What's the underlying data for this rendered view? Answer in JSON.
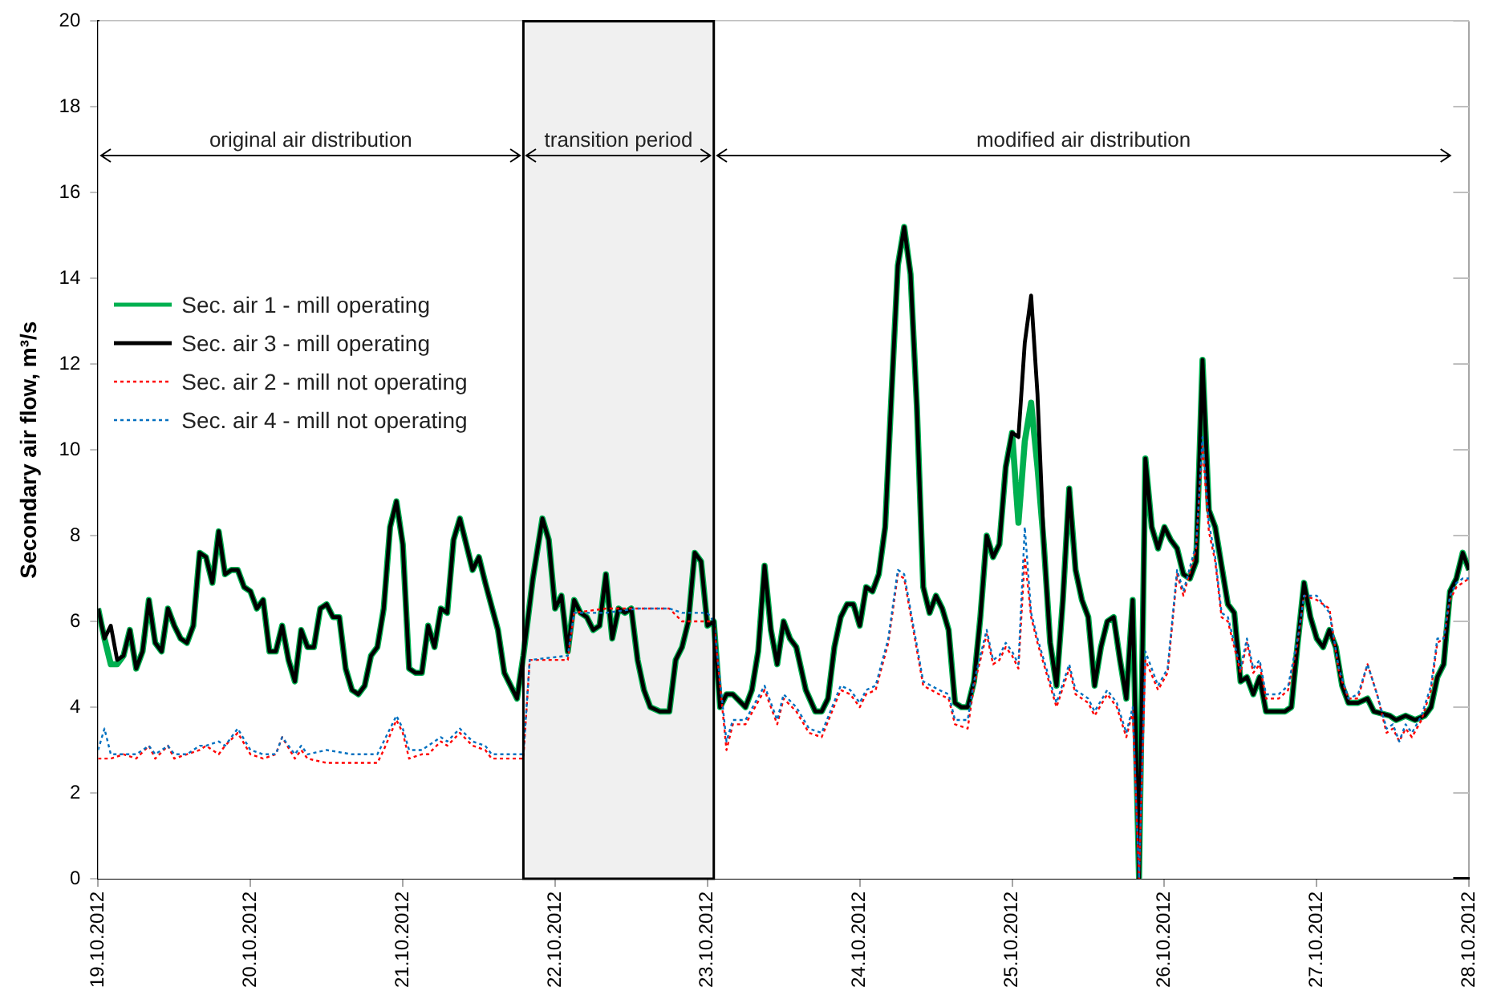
{
  "chart_data": {
    "type": "line",
    "ylabel": "Secondary air flow, m³/s",
    "ylim": [
      0,
      20
    ],
    "yticks": [
      0,
      2,
      4,
      6,
      8,
      10,
      12,
      14,
      16,
      18,
      20
    ],
    "xlim": [
      "2012-10-19",
      "2012-10-28"
    ],
    "xticks": [
      {
        "value": "2012-10-19",
        "label": "19.10.2012"
      },
      {
        "value": "2012-10-20",
        "label": "20.10.2012"
      },
      {
        "value": "2012-10-21",
        "label": "21.10.2012"
      },
      {
        "value": "2012-10-22",
        "label": "22.10.2012"
      },
      {
        "value": "2012-10-23",
        "label": "23.10.2012"
      },
      {
        "value": "2012-10-24",
        "label": "24.10.2012"
      },
      {
        "value": "2012-10-25",
        "label": "25.10.2012"
      },
      {
        "value": "2012-10-26",
        "label": "26.10.2012"
      },
      {
        "value": "2012-10-27",
        "label": "27.10.2012"
      },
      {
        "value": "2012-10-28",
        "label": "28.10.2012"
      }
    ],
    "grid": true,
    "legend": "left",
    "marker": "none",
    "bands": [
      {
        "axis": "x",
        "from": "2012-10-19",
        "to": "2012-10-21T19:00",
        "label": "original air distribution",
        "color": "#ffffff"
      },
      {
        "axis": "x",
        "from": "2012-10-21T19:00",
        "to": "2012-10-23T01:00",
        "label": "transition period",
        "color": "#f0f0f0"
      },
      {
        "axis": "x",
        "from": "2012-10-23T01:00",
        "to": "2012-10-27T21:30",
        "label": "modified air distribution",
        "color": "#ffffff"
      }
    ],
    "x": [
      "2012-10-19T00:00",
      "2012-10-19T01:00",
      "2012-10-19T02:00",
      "2012-10-19T03:00",
      "2012-10-19T04:00",
      "2012-10-19T05:00",
      "2012-10-19T06:00",
      "2012-10-19T07:00",
      "2012-10-19T08:00",
      "2012-10-19T09:00",
      "2012-10-19T10:00",
      "2012-10-19T11:00",
      "2012-10-19T12:00",
      "2012-10-19T13:00",
      "2012-10-19T14:00",
      "2012-10-19T15:00",
      "2012-10-19T16:00",
      "2012-10-19T17:00",
      "2012-10-19T18:00",
      "2012-10-19T19:00",
      "2012-10-19T20:00",
      "2012-10-19T21:00",
      "2012-10-19T22:00",
      "2012-10-19T23:00",
      "2012-10-20T00:00",
      "2012-10-20T01:00",
      "2012-10-20T02:00",
      "2012-10-20T03:00",
      "2012-10-20T04:00",
      "2012-10-20T05:00",
      "2012-10-20T06:00",
      "2012-10-20T07:00",
      "2012-10-20T08:00",
      "2012-10-20T09:00",
      "2012-10-20T10:00",
      "2012-10-20T11:00",
      "2012-10-20T12:00",
      "2012-10-20T13:00",
      "2012-10-20T14:00",
      "2012-10-20T15:00",
      "2012-10-20T16:00",
      "2012-10-20T17:00",
      "2012-10-20T18:00",
      "2012-10-20T19:00",
      "2012-10-20T20:00",
      "2012-10-20T21:00",
      "2012-10-20T22:00",
      "2012-10-20T23:00",
      "2012-10-21T00:00",
      "2012-10-21T01:00",
      "2012-10-21T02:00",
      "2012-10-21T03:00",
      "2012-10-21T04:00",
      "2012-10-21T05:00",
      "2012-10-21T06:00",
      "2012-10-21T07:00",
      "2012-10-21T08:00",
      "2012-10-21T09:00",
      "2012-10-21T10:00",
      "2012-10-21T11:00",
      "2012-10-21T12:00",
      "2012-10-21T13:00",
      "2012-10-21T15:00",
      "2012-10-21T16:00",
      "2012-10-21T17:00",
      "2012-10-21T18:00",
      "2012-10-21T19:00",
      "2012-10-21T20:30",
      "2012-10-21T22:00",
      "2012-10-21T23:00",
      "2012-10-22T00:00",
      "2012-10-22T01:00",
      "2012-10-22T02:00",
      "2012-10-22T03:00",
      "2012-10-22T04:00",
      "2012-10-22T05:00",
      "2012-10-22T06:00",
      "2012-10-22T07:00",
      "2012-10-22T08:00",
      "2012-10-22T09:00",
      "2012-10-22T10:00",
      "2012-10-22T11:00",
      "2012-10-22T12:00",
      "2012-10-22T13:00",
      "2012-10-22T14:00",
      "2012-10-22T15:00",
      "2012-10-22T16:30",
      "2012-10-22T18:00",
      "2012-10-22T19:00",
      "2012-10-22T20:00",
      "2012-10-22T21:00",
      "2012-10-22T22:00",
      "2012-10-22T23:00",
      "2012-10-23T00:00",
      "2012-10-23T01:00",
      "2012-10-23T02:00",
      "2012-10-23T03:00",
      "2012-10-23T04:00",
      "2012-10-23T06:00",
      "2012-10-23T07:00",
      "2012-10-23T08:00",
      "2012-10-23T09:00",
      "2012-10-23T10:00",
      "2012-10-23T11:00",
      "2012-10-23T12:00",
      "2012-10-23T13:00",
      "2012-10-23T14:00",
      "2012-10-23T15:30",
      "2012-10-23T17:00",
      "2012-10-23T18:00",
      "2012-10-23T19:00",
      "2012-10-23T20:00",
      "2012-10-23T21:00",
      "2012-10-23T22:00",
      "2012-10-23T23:00",
      "2012-10-24T00:00",
      "2012-10-24T01:00",
      "2012-10-24T02:00",
      "2012-10-24T03:00",
      "2012-10-24T04:00",
      "2012-10-24T05:00",
      "2012-10-24T06:00",
      "2012-10-24T07:00",
      "2012-10-24T08:00",
      "2012-10-24T09:00",
      "2012-10-24T10:00",
      "2012-10-24T11:00",
      "2012-10-24T12:00",
      "2012-10-24T13:00",
      "2012-10-24T14:00",
      "2012-10-24T15:00",
      "2012-10-24T16:00",
      "2012-10-24T17:00",
      "2012-10-24T18:00",
      "2012-10-24T19:00",
      "2012-10-24T20:00",
      "2012-10-24T21:00",
      "2012-10-24T22:00",
      "2012-10-24T23:00",
      "2012-10-25T00:00",
      "2012-10-25T01:00",
      "2012-10-25T02:00",
      "2012-10-25T03:00",
      "2012-10-25T04:00",
      "2012-10-25T05:00",
      "2012-10-25T06:00",
      "2012-10-25T07:00",
      "2012-10-25T08:00",
      "2012-10-25T09:00",
      "2012-10-25T10:00",
      "2012-10-25T11:00",
      "2012-10-25T12:00",
      "2012-10-25T13:00",
      "2012-10-25T14:00",
      "2012-10-25T15:00",
      "2012-10-25T16:00",
      "2012-10-25T17:00",
      "2012-10-25T18:00",
      "2012-10-25T19:00",
      "2012-10-25T20:00",
      "2012-10-25T21:00",
      "2012-10-25T22:00",
      "2012-10-25T23:00",
      "2012-10-26T00:00",
      "2012-10-26T01:00",
      "2012-10-26T02:00",
      "2012-10-26T03:00",
      "2012-10-26T04:00",
      "2012-10-26T05:00",
      "2012-10-26T06:00",
      "2012-10-26T07:00",
      "2012-10-26T08:00",
      "2012-10-26T09:00",
      "2012-10-26T10:00",
      "2012-10-26T11:00",
      "2012-10-26T12:00",
      "2012-10-26T13:00",
      "2012-10-26T14:00",
      "2012-10-26T15:00",
      "2012-10-26T16:00",
      "2012-10-26T17:00",
      "2012-10-26T18:00",
      "2012-10-26T19:00",
      "2012-10-26T20:00",
      "2012-10-26T21:00",
      "2012-10-26T22:00",
      "2012-10-26T23:00",
      "2012-10-27T00:00",
      "2012-10-27T01:00",
      "2012-10-27T02:00",
      "2012-10-27T03:00",
      "2012-10-27T04:00",
      "2012-10-27T05:00",
      "2012-10-27T06:30",
      "2012-10-27T08:00",
      "2012-10-27T09:00",
      "2012-10-27T11:30",
      "2012-10-27T12:30",
      "2012-10-27T14:00",
      "2012-10-27T15:30",
      "2012-10-27T17:00",
      "2012-10-27T18:00",
      "2012-10-27T19:00",
      "2012-10-27T20:00",
      "2012-10-27T21:00",
      "2012-10-27T22:00",
      "2012-10-27T23:00",
      "2012-10-28T00:00"
    ],
    "series": [
      {
        "name": "Sec. air 1 - mill operating",
        "color": "#00b050",
        "line_style": "solid",
        "values": [
          6.3,
          5.6,
          5.0,
          5.0,
          5.2,
          5.8,
          4.9,
          5.3,
          6.5,
          5.5,
          5.3,
          6.3,
          5.9,
          5.6,
          5.5,
          5.9,
          7.6,
          7.5,
          6.9,
          8.1,
          7.1,
          7.2,
          7.2,
          6.8,
          6.7,
          6.3,
          6.5,
          5.3,
          5.3,
          5.9,
          5.1,
          4.6,
          5.8,
          5.4,
          5.4,
          6.3,
          6.4,
          6.1,
          6.1,
          4.9,
          4.4,
          4.3,
          4.5,
          5.2,
          5.4,
          6.3,
          8.2,
          8.8,
          7.8,
          4.9,
          4.8,
          4.8,
          5.9,
          5.4,
          6.3,
          6.2,
          7.9,
          8.4,
          7.8,
          7.2,
          7.5,
          6.9,
          5.8,
          4.8,
          4.5,
          4.2,
          5.2,
          7.0,
          8.4,
          7.9,
          6.3,
          6.6,
          5.3,
          6.5,
          6.2,
          6.1,
          5.8,
          5.9,
          7.1,
          5.6,
          6.3,
          6.2,
          6.3,
          5.1,
          4.4,
          4.0,
          3.9,
          3.9,
          5.1,
          5.4,
          6.0,
          7.6,
          7.4,
          5.9,
          6.0,
          4.0,
          4.3,
          4.3,
          4.0,
          4.4,
          5.3,
          7.3,
          5.8,
          5.0,
          6.0,
          5.6,
          5.4,
          4.4,
          3.9,
          3.9,
          4.2,
          5.4,
          6.1,
          6.4,
          6.4,
          5.9,
          6.8,
          6.7,
          7.1,
          8.2,
          11.3,
          14.3,
          15.2,
          14.1,
          11.0,
          6.8,
          6.2,
          6.6,
          6.3,
          5.8,
          4.1,
          4.0,
          4.0,
          4.6,
          6.1,
          8.0,
          7.5,
          7.8,
          9.6,
          10.4,
          8.3,
          10.2,
          11.1,
          9.6,
          7.8,
          5.5,
          4.5,
          6.5,
          9.1,
          7.2,
          6.5,
          6.1,
          4.5,
          5.4,
          6.0,
          6.1,
          5.1,
          4.2,
          6.5,
          0,
          9.8,
          8.2,
          7.7,
          8.2,
          7.9,
          7.7,
          7.1,
          7.0,
          7.4,
          12.1,
          8.6,
          8.2,
          7.3,
          6.4,
          6.2,
          4.6,
          4.7,
          4.3,
          4.7,
          3.9,
          3.9,
          3.9,
          3.9,
          4.0,
          5.5,
          6.9,
          6.1,
          5.6,
          5.4,
          5.8,
          5.4,
          4.5,
          4.1,
          4.1,
          4.2,
          3.9,
          3.8,
          3.7,
          3.8,
          3.7,
          3.8,
          4.0,
          4.7,
          5.0,
          6.7,
          7.0,
          7.6,
          7.2
        ]
      },
      {
        "name": "Sec. air 3 - mill operating",
        "color": "#000000",
        "line_style": "solid",
        "values": [
          6.3,
          5.6,
          5.9,
          5.1,
          5.2,
          5.8,
          4.9,
          5.3,
          6.5,
          5.5,
          5.3,
          6.3,
          5.9,
          5.6,
          5.5,
          5.9,
          7.6,
          7.5,
          6.9,
          8.1,
          7.1,
          7.2,
          7.2,
          6.8,
          6.7,
          6.3,
          6.5,
          5.3,
          5.3,
          5.9,
          5.1,
          4.6,
          5.8,
          5.4,
          5.4,
          6.3,
          6.4,
          6.1,
          6.1,
          4.9,
          4.4,
          4.3,
          4.5,
          5.2,
          5.4,
          6.3,
          8.2,
          8.8,
          7.8,
          4.9,
          4.8,
          4.8,
          5.9,
          5.4,
          6.3,
          6.2,
          7.9,
          8.4,
          7.8,
          7.2,
          7.5,
          6.9,
          5.8,
          4.8,
          4.5,
          4.2,
          5.2,
          7.0,
          8.4,
          7.9,
          6.3,
          6.6,
          5.3,
          6.5,
          6.2,
          6.1,
          5.8,
          5.9,
          7.1,
          5.6,
          6.3,
          6.2,
          6.3,
          5.1,
          4.4,
          4.0,
          3.9,
          3.9,
          5.1,
          5.4,
          6.0,
          7.6,
          7.4,
          5.9,
          6.0,
          4.0,
          4.3,
          4.3,
          4.0,
          4.4,
          5.3,
          7.3,
          5.8,
          5.0,
          6.0,
          5.6,
          5.4,
          4.4,
          3.9,
          3.9,
          4.2,
          5.4,
          6.1,
          6.4,
          6.4,
          5.9,
          6.8,
          6.7,
          7.1,
          8.2,
          11.3,
          14.3,
          15.2,
          14.1,
          11.0,
          6.8,
          6.2,
          6.6,
          6.3,
          5.8,
          4.1,
          4.0,
          4.0,
          4.6,
          6.1,
          8.0,
          7.5,
          7.8,
          9.6,
          10.4,
          10.3,
          12.5,
          13.6,
          11.3,
          7.8,
          5.5,
          4.5,
          6.5,
          9.1,
          7.2,
          6.5,
          6.1,
          4.5,
          5.4,
          6.0,
          6.1,
          5.1,
          4.2,
          6.5,
          0,
          9.8,
          8.2,
          7.7,
          8.2,
          7.9,
          7.7,
          7.1,
          7.0,
          7.4,
          12.1,
          8.6,
          8.2,
          7.3,
          6.4,
          6.2,
          4.6,
          4.7,
          4.3,
          4.7,
          3.9,
          3.9,
          3.9,
          3.9,
          4.0,
          5.5,
          6.9,
          6.1,
          5.6,
          5.4,
          5.8,
          5.4,
          4.5,
          4.1,
          4.1,
          4.2,
          3.9,
          3.8,
          3.7,
          3.8,
          3.7,
          3.8,
          4.0,
          4.7,
          5.0,
          6.7,
          7.0,
          7.6,
          7.2
        ]
      },
      {
        "name": "Sec. air 2 - mill not operating",
        "color": "#ff0000",
        "line_style": "dotted",
        "x": [
          "2012-10-19T00:00",
          "2012-10-19T01:00",
          "2012-10-19T02:00",
          "2012-10-19T04:00",
          "2012-10-19T06:00",
          "2012-10-19T08:00",
          "2012-10-19T09:00",
          "2012-10-19T11:00",
          "2012-10-19T12:00",
          "2012-10-19T14:00",
          "2012-10-19T16:00",
          "2012-10-19T17:00",
          "2012-10-19T19:00",
          "2012-10-19T20:00",
          "2012-10-19T22:00",
          "2012-10-20T00:00",
          "2012-10-20T02:00",
          "2012-10-20T04:00",
          "2012-10-20T05:00",
          "2012-10-20T07:00",
          "2012-10-20T08:00",
          "2012-10-20T09:00",
          "2012-10-20T12:00",
          "2012-10-20T16:00",
          "2012-10-20T20:00",
          "2012-10-20T21:00",
          "2012-10-20T23:00",
          "2012-10-21T00:00",
          "2012-10-21T01:00",
          "2012-10-21T03:00",
          "2012-10-21T04:00",
          "2012-10-21T06:00",
          "2012-10-21T07:00",
          "2012-10-21T09:00",
          "2012-10-21T11:00",
          "2012-10-21T13:00",
          "2012-10-21T14:00",
          "2012-10-21T19:00",
          "2012-10-21T20:00",
          "2012-10-22T02:00",
          "2012-10-22T03:00",
          "2012-10-22T08:00",
          "2012-10-22T13:00",
          "2012-10-22T18:00",
          "2012-10-22T20:00",
          "2012-10-23T00:00",
          "2012-10-23T01:00",
          "2012-10-23T03:00",
          "2012-10-23T04:00",
          "2012-10-23T06:00",
          "2012-10-23T09:00",
          "2012-10-23T11:00",
          "2012-10-23T12:00",
          "2012-10-23T14:00",
          "2012-10-23T16:00",
          "2012-10-23T18:00",
          "2012-10-23T21:00",
          "2012-10-23T22:30",
          "2012-10-24T00:00",
          "2012-10-24T01:00",
          "2012-10-24T02:30",
          "2012-10-24T04:30",
          "2012-10-24T06:00",
          "2012-10-24T07:00",
          "2012-10-24T10:00",
          "2012-10-24T12:30",
          "2012-10-24T14:00",
          "2012-10-24T15:00",
          "2012-10-24T17:00",
          "2012-10-24T18:00",
          "2012-10-24T20:00",
          "2012-10-24T21:00",
          "2012-10-24T22:00",
          "2012-10-24T23:00",
          "2012-10-25T00:00",
          "2012-10-25T01:00",
          "2012-10-25T02:00",
          "2012-10-25T03:00",
          "2012-10-25T04:00",
          "2012-10-25T05:00",
          "2012-10-25T07:00",
          "2012-10-25T09:00",
          "2012-10-25T10:00",
          "2012-10-25T12:00",
          "2012-10-25T13:00",
          "2012-10-25T15:00",
          "2012-10-25T16:30",
          "2012-10-25T18:00",
          "2012-10-25T19:00",
          "2012-10-25T20:00",
          "2012-10-25T21:00",
          "2012-10-25T23:00",
          "2012-10-26T00:30",
          "2012-10-26T02:00",
          "2012-10-26T03:00",
          "2012-10-26T05:00",
          "2012-10-26T06:00",
          "2012-10-26T07:00",
          "2012-10-26T08:00",
          "2012-10-26T09:00",
          "2012-10-26T10:00",
          "2012-10-26T12:00",
          "2012-10-26T13:00",
          "2012-10-26T14:00",
          "2012-10-26T15:00",
          "2012-10-26T16:00",
          "2012-10-26T18:00",
          "2012-10-26T19:30",
          "2012-10-26T21:00",
          "2012-10-26T22:00",
          "2012-10-27T00:00",
          "2012-10-27T02:00",
          "2012-10-27T03:30",
          "2012-10-27T05:00",
          "2012-10-27T06:30",
          "2012-10-27T08:00",
          "2012-10-27T09:30",
          "2012-10-27T11:00",
          "2012-10-27T12:00",
          "2012-10-27T13:00",
          "2012-10-27T14:00",
          "2012-10-27T15:00",
          "2012-10-27T16:30",
          "2012-10-27T18:00",
          "2012-10-27T19:00",
          "2012-10-27T20:00",
          "2012-10-27T21:00",
          "2012-10-27T22:00",
          "2012-10-27T23:00",
          "2012-10-28T00:00"
        ],
        "values": [
          2.8,
          2.8,
          2.8,
          2.9,
          2.8,
          3.1,
          2.8,
          3.1,
          2.8,
          2.9,
          3.0,
          3.1,
          2.9,
          3.1,
          3.4,
          2.9,
          2.8,
          2.9,
          3.3,
          2.8,
          3.0,
          2.8,
          2.7,
          2.7,
          2.7,
          3.0,
          3.7,
          3.4,
          2.8,
          2.9,
          2.9,
          3.2,
          3.1,
          3.4,
          3.1,
          3.0,
          2.8,
          2.8,
          5.1,
          5.1,
          6.2,
          6.3,
          6.3,
          6.3,
          6.0,
          6.0,
          6.0,
          3.0,
          3.6,
          3.6,
          4.4,
          3.6,
          4.2,
          3.9,
          3.4,
          3.3,
          4.4,
          4.3,
          4.0,
          4.3,
          4.4,
          5.5,
          7.1,
          7.0,
          4.5,
          4.3,
          4.2,
          3.6,
          3.5,
          4.5,
          5.7,
          5.0,
          5.1,
          5.4,
          5.2,
          4.9,
          7.5,
          6.1,
          5.5,
          5.0,
          4.0,
          4.9,
          4.3,
          4.1,
          3.8,
          4.3,
          4.0,
          3.3,
          3.9,
          0,
          5.1,
          4.4,
          4.8,
          7.1,
          6.6,
          7.7,
          10.1,
          8.1,
          7.4,
          6.1,
          6.0,
          4.8,
          5.5,
          4.8,
          5.0,
          4.2,
          4.2,
          4.4,
          5.5,
          6.6,
          6.5,
          6.3,
          4.8,
          4.2,
          4.2,
          5.0,
          4.3,
          3.4,
          3.5,
          3.2,
          3.5,
          3.3,
          3.7,
          4.4,
          5.5,
          5.6,
          6.5,
          6.8,
          6.9,
          7.0
        ]
      },
      {
        "name": "Sec. air 4 - mill not operating",
        "color": "#0070c0",
        "line_style": "dotted",
        "x": [
          "2012-10-19T00:00",
          "2012-10-19T01:00",
          "2012-10-19T02:00",
          "2012-10-19T04:00",
          "2012-10-19T06:00",
          "2012-10-19T08:00",
          "2012-10-19T09:00",
          "2012-10-19T11:00",
          "2012-10-19T12:00",
          "2012-10-19T14:00",
          "2012-10-19T16:00",
          "2012-10-19T17:00",
          "2012-10-19T19:00",
          "2012-10-19T20:00",
          "2012-10-19T22:00",
          "2012-10-20T00:00",
          "2012-10-20T02:00",
          "2012-10-20T04:00",
          "2012-10-20T05:00",
          "2012-10-20T07:00",
          "2012-10-20T08:00",
          "2012-10-20T09:00",
          "2012-10-20T12:00",
          "2012-10-20T16:00",
          "2012-10-20T20:00",
          "2012-10-20T21:00",
          "2012-10-20T23:00",
          "2012-10-21T00:00",
          "2012-10-21T01:00",
          "2012-10-21T03:00",
          "2012-10-21T04:00",
          "2012-10-21T06:00",
          "2012-10-21T07:00",
          "2012-10-21T09:00",
          "2012-10-21T11:00",
          "2012-10-21T13:00",
          "2012-10-21T14:00",
          "2012-10-21T19:00",
          "2012-10-21T20:00",
          "2012-10-22T02:00",
          "2012-10-22T03:00",
          "2012-10-22T08:00",
          "2012-10-22T13:00",
          "2012-10-22T18:00",
          "2012-10-22T20:00",
          "2012-10-23T00:00",
          "2012-10-23T01:00",
          "2012-10-23T03:00",
          "2012-10-23T04:00",
          "2012-10-23T06:00",
          "2012-10-23T09:00",
          "2012-10-23T11:00",
          "2012-10-23T12:00",
          "2012-10-23T14:00",
          "2012-10-23T16:00",
          "2012-10-23T18:00",
          "2012-10-23T21:00",
          "2012-10-23T22:30",
          "2012-10-24T00:00",
          "2012-10-24T01:00",
          "2012-10-24T02:30",
          "2012-10-24T04:30",
          "2012-10-24T06:00",
          "2012-10-24T07:00",
          "2012-10-24T10:00",
          "2012-10-24T12:30",
          "2012-10-24T14:00",
          "2012-10-24T15:00",
          "2012-10-24T17:00",
          "2012-10-24T18:00",
          "2012-10-24T20:00",
          "2012-10-24T21:00",
          "2012-10-24T22:00",
          "2012-10-24T23:00",
          "2012-10-25T00:00",
          "2012-10-25T01:00",
          "2012-10-25T02:00",
          "2012-10-25T03:00",
          "2012-10-25T04:00",
          "2012-10-25T05:00",
          "2012-10-25T07:00",
          "2012-10-25T09:00",
          "2012-10-25T10:00",
          "2012-10-25T12:00",
          "2012-10-25T13:00",
          "2012-10-25T15:00",
          "2012-10-25T16:30",
          "2012-10-25T18:00",
          "2012-10-25T19:00",
          "2012-10-25T20:00",
          "2012-10-25T21:00",
          "2012-10-25T23:00",
          "2012-10-26T00:30",
          "2012-10-26T02:00",
          "2012-10-26T03:00",
          "2012-10-26T05:00",
          "2012-10-26T06:00",
          "2012-10-26T07:00",
          "2012-10-26T08:00",
          "2012-10-26T09:00",
          "2012-10-26T10:00",
          "2012-10-26T12:00",
          "2012-10-26T13:00",
          "2012-10-26T14:00",
          "2012-10-26T15:00",
          "2012-10-26T16:00",
          "2012-10-26T18:00",
          "2012-10-26T19:30",
          "2012-10-26T21:00",
          "2012-10-26T22:00",
          "2012-10-27T00:00",
          "2012-10-27T02:00",
          "2012-10-27T03:30",
          "2012-10-27T05:00",
          "2012-10-27T06:30",
          "2012-10-27T08:00",
          "2012-10-27T09:30",
          "2012-10-27T11:00",
          "2012-10-27T12:00",
          "2012-10-27T13:00",
          "2012-10-27T14:00",
          "2012-10-27T15:00",
          "2012-10-27T16:30",
          "2012-10-27T18:00",
          "2012-10-27T19:00",
          "2012-10-27T20:00",
          "2012-10-27T21:00",
          "2012-10-27T22:00",
          "2012-10-27T23:00",
          "2012-10-28T00:00"
        ],
        "values": [
          3.0,
          3.5,
          2.9,
          2.9,
          2.9,
          3.1,
          2.9,
          3.1,
          2.9,
          2.9,
          3.1,
          3.1,
          3.2,
          3.1,
          3.5,
          3.0,
          2.9,
          2.9,
          3.3,
          2.9,
          3.1,
          2.9,
          3.0,
          2.9,
          2.9,
          3.2,
          3.8,
          3.5,
          3.0,
          3.0,
          3.1,
          3.3,
          3.2,
          3.5,
          3.2,
          3.1,
          2.9,
          2.9,
          5.1,
          5.2,
          6.2,
          6.2,
          6.3,
          6.3,
          6.2,
          6.2,
          6.0,
          3.2,
          3.7,
          3.7,
          4.5,
          3.7,
          4.3,
          4.0,
          3.5,
          3.4,
          4.5,
          4.4,
          4.1,
          4.4,
          4.5,
          5.6,
          7.2,
          7.1,
          4.6,
          4.4,
          4.3,
          3.7,
          3.7,
          4.6,
          5.8,
          5.1,
          5.2,
          5.5,
          5.3,
          5.0,
          8.2,
          6.2,
          5.6,
          5.1,
          4.1,
          5.0,
          4.4,
          4.2,
          3.9,
          4.4,
          4.1,
          3.4,
          4.0,
          0,
          5.3,
          4.5,
          4.9,
          7.2,
          6.7,
          7.8,
          10.3,
          8.3,
          7.5,
          6.2,
          6.1,
          4.9,
          5.6,
          4.9,
          5.1,
          4.3,
          4.3,
          4.5,
          5.6,
          6.6,
          6.6,
          6.2,
          4.9,
          4.2,
          4.3,
          5.0,
          4.3,
          3.5,
          3.6,
          3.2,
          3.6,
          3.4,
          3.8,
          4.5,
          5.6,
          5.6,
          6.6,
          6.9,
          7.0,
          7.0
        ]
      }
    ]
  }
}
